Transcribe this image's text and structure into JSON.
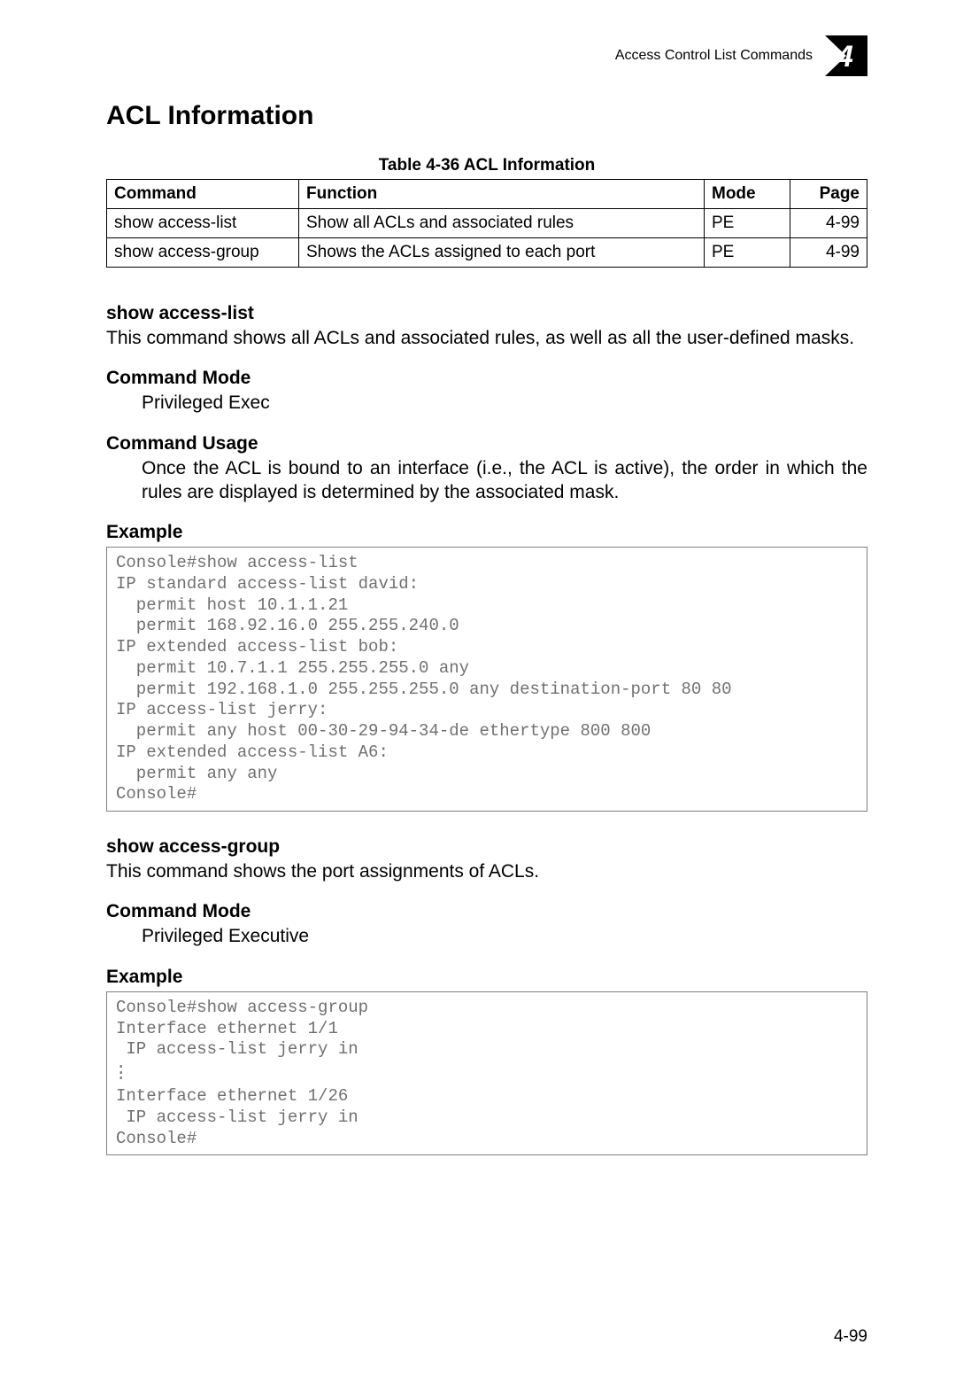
{
  "header": {
    "title": "Access Control List Commands",
    "chapter_number": "4",
    "badge_fill": "#000000"
  },
  "section_title": "ACL Information",
  "table": {
    "caption": "Table 4-36  ACL Information",
    "columns": [
      "Command",
      "Function",
      "Mode",
      "Page"
    ],
    "rows": [
      [
        "show access-list",
        "Show all ACLs and associated rules",
        "PE",
        "4-99"
      ],
      [
        "show access-group",
        "Shows the ACLs assigned to each port",
        "PE",
        "4-99"
      ]
    ],
    "border_color": "#000000",
    "fontsize": 19
  },
  "sections": [
    {
      "title": "show access-list",
      "intro": "This command shows all ACLs and associated rules, as well as all the user-defined masks.",
      "blocks": [
        {
          "label": "Command Mode",
          "text": "Privileged Exec"
        },
        {
          "label": "Command Usage",
          "text": "Once the ACL is bound to an interface (i.e., the ACL is active), the order in which the rules are displayed is determined by the associated mask.",
          "justify": true
        },
        {
          "label": "Example"
        }
      ],
      "console": "Console#show access-list\nIP standard access-list david:\n  permit host 10.1.1.21\n  permit 168.92.16.0 255.255.240.0\nIP extended access-list bob:\n  permit 10.7.1.1 255.255.255.0 any\n  permit 192.168.1.0 255.255.255.0 any destination-port 80 80\nIP access-list jerry:\n  permit any host 00-30-29-94-34-de ethertype 800 800\nIP extended access-list A6:\n  permit any any\nConsole#"
    },
    {
      "title": "show access-group",
      "intro": "This command shows the port assignments of ACLs.",
      "blocks": [
        {
          "label": "Command Mode",
          "text": "Privileged Executive"
        },
        {
          "label": "Example"
        }
      ],
      "console": "Console#show access-group\nInterface ethernet 1/1\n IP access-list jerry in\n__DOTS__\nInterface ethernet 1/26\n IP access-list jerry in\nConsole#"
    }
  ],
  "page_number": "4-99",
  "style": {
    "console_text_color": "#707070",
    "console_border_color": "#808080",
    "body_fontsize": 21,
    "heading_fontsize": 30
  }
}
